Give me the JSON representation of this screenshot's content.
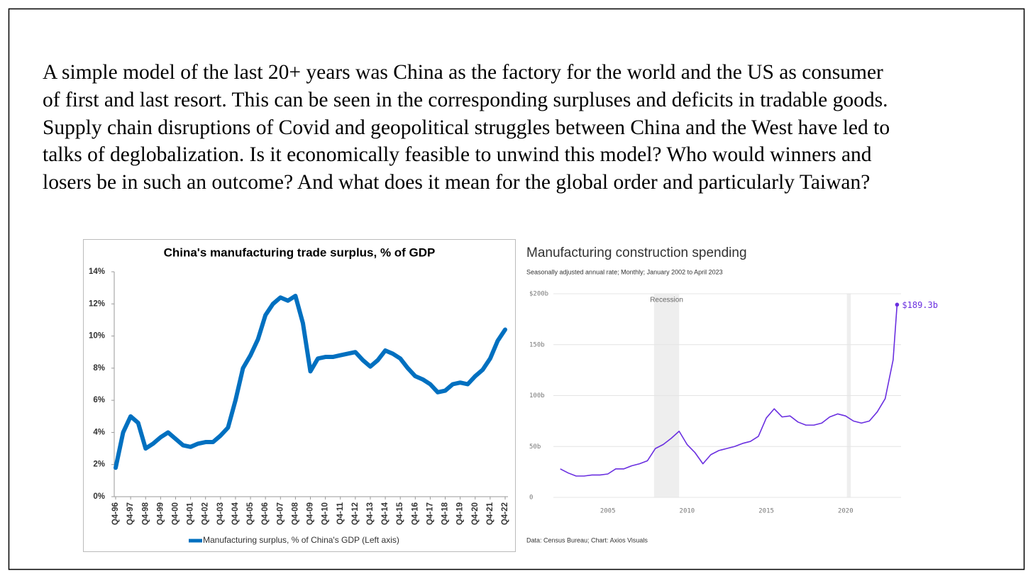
{
  "text": {
    "lines": [
      "A simple model of the last 20+ years was China as the factory for the world and the US as consumer",
      "of first and last resort. This can be seen in the corresponding surpluses and deficits in tradable goods.",
      "Supply chain disruptions of Covid and geopolitical struggles between China and the West have led to",
      "talks of deglobalization. Is it economically feasible to unwind this model? Who would winners and",
      "losers be in such an outcome? And what does it mean for the global order and particularly Taiwan?"
    ]
  },
  "chart_data": [
    {
      "type": "line",
      "title": "China's manufacturing trade surplus, % of GDP",
      "categories": [
        "Q4-96",
        null,
        "Q4-97",
        null,
        "Q4-98",
        null,
        "Q4-99",
        null,
        "Q4-00",
        null,
        "Q4-01",
        null,
        "Q4-02",
        null,
        "Q4-03",
        null,
        "Q4-04",
        null,
        "Q4-05",
        null,
        "Q4-06",
        null,
        "Q4-07",
        null,
        "Q4-08",
        null,
        "Q4-09",
        null,
        "Q4-10",
        null,
        "Q4-11",
        null,
        "Q4-12",
        null,
        "Q4-13",
        null,
        "Q4-14",
        null,
        "Q4-15",
        null,
        "Q4-16",
        null,
        "Q4-17",
        null,
        "Q4-18",
        null,
        "Q4-19",
        null,
        "Q4-20",
        null,
        "Q4-21",
        null,
        "Q4-22"
      ],
      "series": [
        {
          "name": "Manufacturing surplus, % of China's GDP (Left axis)",
          "color": "#0070c0",
          "values": [
            1.8,
            4.0,
            5.0,
            4.6,
            3.0,
            3.3,
            3.7,
            4.0,
            3.6,
            3.2,
            3.1,
            3.3,
            3.4,
            3.4,
            3.8,
            4.3,
            6.0,
            8.0,
            8.8,
            9.8,
            11.3,
            12.0,
            12.4,
            12.2,
            12.5,
            10.8,
            7.8,
            8.6,
            8.7,
            8.7,
            8.8,
            8.9,
            9.0,
            8.5,
            8.1,
            8.5,
            9.1,
            8.9,
            8.6,
            8.0,
            7.5,
            7.3,
            7.0,
            6.5,
            6.6,
            7.0,
            7.1,
            7.0,
            7.5,
            7.9,
            8.6,
            9.7,
            10.4
          ]
        }
      ],
      "ylim": [
        0,
        14
      ],
      "yticks": [
        {
          "value": 0,
          "label": "0%"
        },
        {
          "value": 2,
          "label": "2%"
        },
        {
          "value": 4,
          "label": "4%"
        },
        {
          "value": 6,
          "label": "6%"
        },
        {
          "value": 8,
          "label": "8%"
        },
        {
          "value": 10,
          "label": "10%"
        },
        {
          "value": 12,
          "label": "12%"
        },
        {
          "value": 14,
          "label": "14%"
        }
      ],
      "legend": "bottom"
    },
    {
      "type": "line",
      "title": "Manufacturing construction spending",
      "subtitle": "Seasonally adjusted annual rate; Monthly; January 2002 to April 2023",
      "source": "Data: Census Bureau; Chart: Axios Visuals",
      "annotation": "Recession",
      "shaded_regions": [
        [
          2007.917,
          2009.5
        ],
        [
          2020.083,
          2020.333
        ]
      ],
      "x": [
        2002.0,
        2002.5,
        2003.0,
        2003.5,
        2004.0,
        2004.5,
        2005.0,
        2005.5,
        2006.0,
        2006.5,
        2007.0,
        2007.5,
        2008.0,
        2008.5,
        2009.0,
        2009.5,
        2010.0,
        2010.5,
        2011.0,
        2011.5,
        2012.0,
        2012.5,
        2013.0,
        2013.5,
        2014.0,
        2014.5,
        2015.0,
        2015.5,
        2016.0,
        2016.5,
        2017.0,
        2017.5,
        2018.0,
        2018.5,
        2019.0,
        2019.5,
        2020.0,
        2020.5,
        2021.0,
        2021.5,
        2022.0,
        2022.5,
        2023.0,
        2023.25
      ],
      "values": [
        28,
        24,
        21,
        21,
        22,
        22,
        23,
        28,
        28,
        31,
        33,
        36,
        48,
        52,
        58,
        65,
        52,
        44,
        33,
        42,
        46,
        48,
        50,
        53,
        55,
        60,
        78,
        87,
        79,
        80,
        74,
        71,
        71,
        73,
        79,
        82,
        80,
        75,
        73,
        75,
        84,
        97,
        135,
        189.3
      ],
      "value_labels": [
        null,
        null,
        null,
        null,
        null,
        null,
        null,
        null,
        null,
        null,
        null,
        null,
        null,
        null,
        null,
        null,
        null,
        null,
        null,
        null,
        null,
        null,
        null,
        null,
        null,
        null,
        null,
        null,
        null,
        null,
        null,
        null,
        null,
        null,
        null,
        null,
        null,
        null,
        null,
        null,
        null,
        null,
        null,
        "$189.3b"
      ],
      "color": "#6a2fe0",
      "xlim": [
        2000,
        2023.5
      ],
      "xticks": [
        2005,
        2010,
        2015,
        2020
      ],
      "ylim": [
        0,
        200
      ],
      "yticks": [
        0,
        {
          "value": 50,
          "label": "50b"
        },
        {
          "value": 100,
          "label": "100b"
        },
        {
          "value": 150,
          "label": "150b"
        },
        {
          "value": 200,
          "label": "$200b"
        }
      ],
      "grid": true
    }
  ]
}
